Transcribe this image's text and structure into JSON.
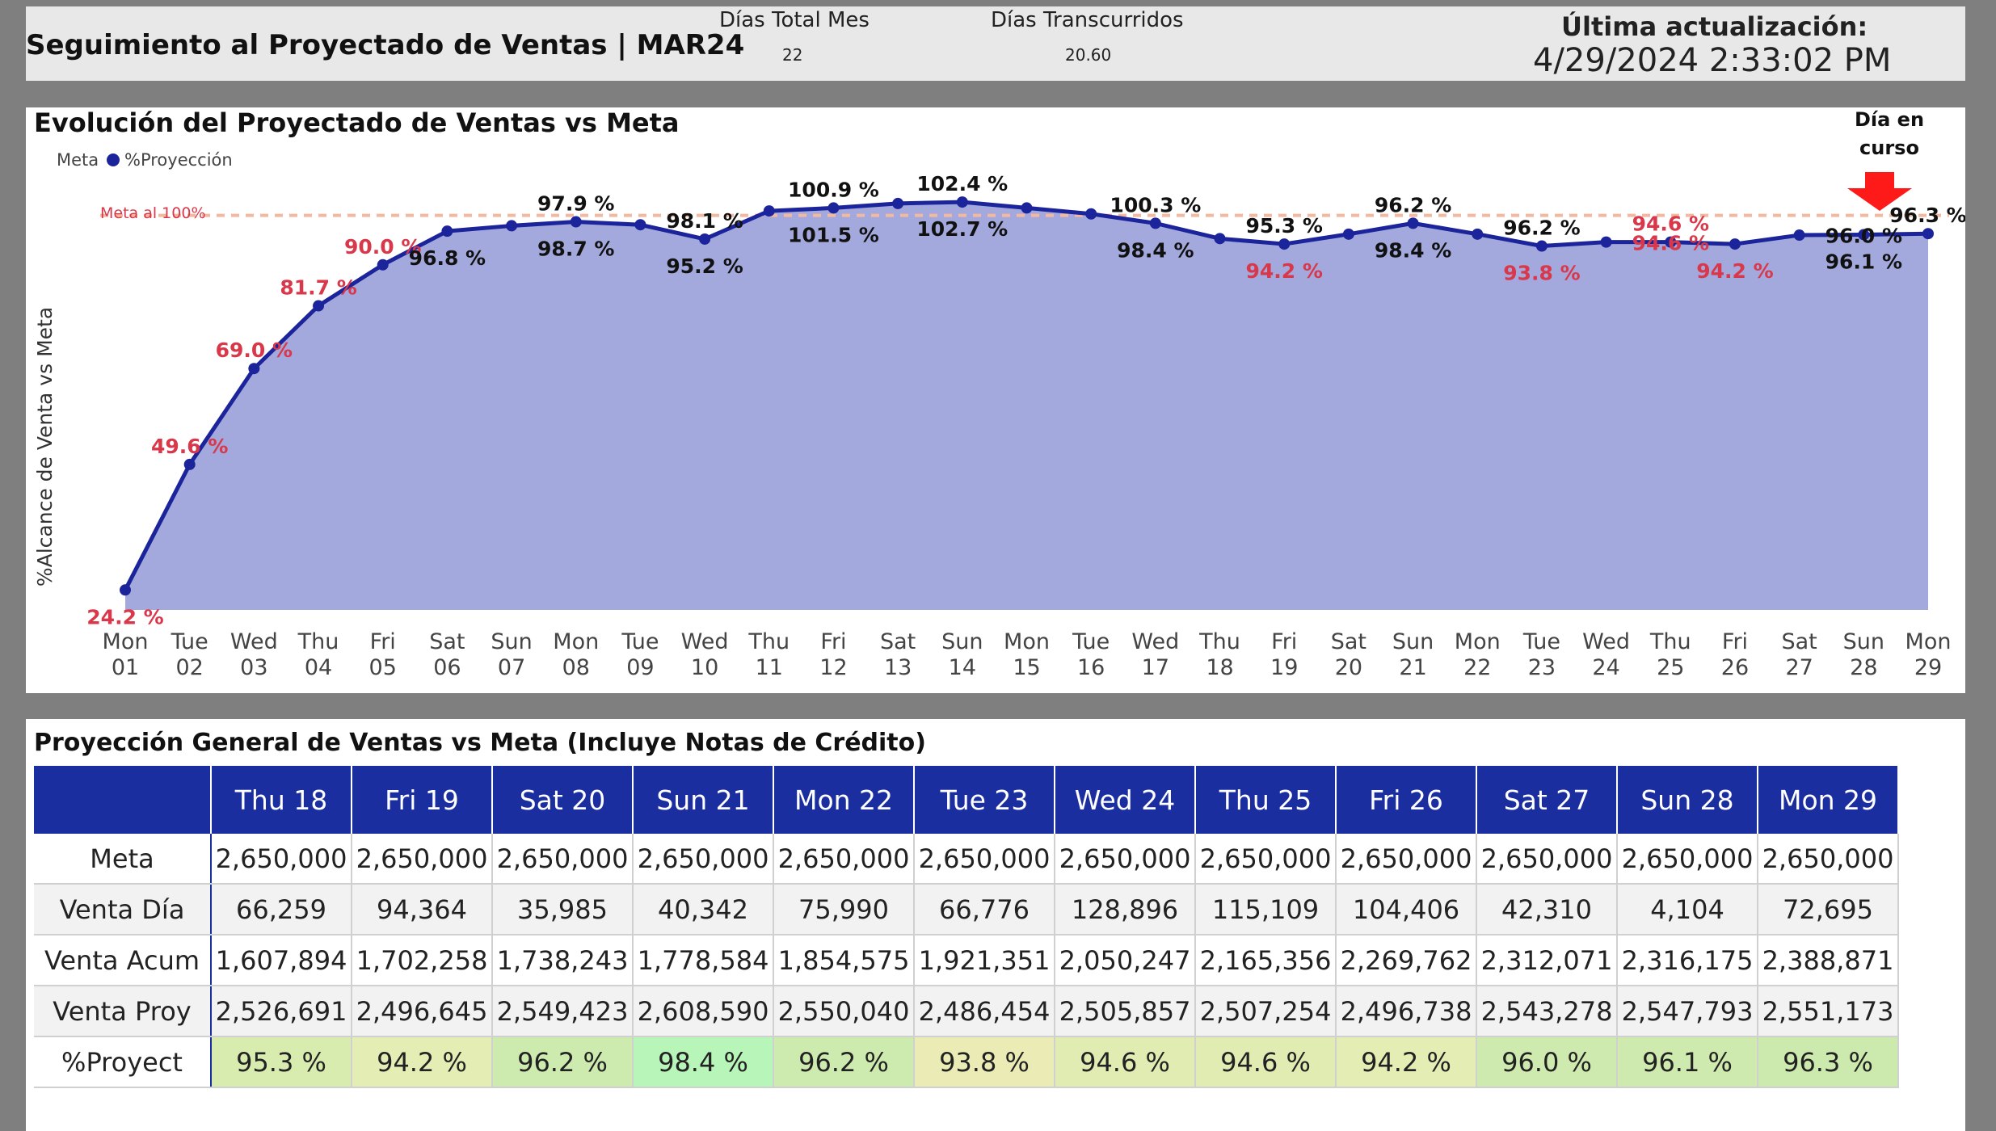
{
  "header": {
    "title": "Seguimiento al Proyectado de Ventas | MAR24",
    "dias_total_label": "Días Total Mes",
    "dias_total_value": "22",
    "dias_trans_label": "Días Transcurridos",
    "dias_trans_value": "20.60",
    "last_update_label": "Última actualización:",
    "last_update_value": "4/29/2024 2:33:02 PM"
  },
  "chart": {
    "title": "Evolución del Proyectado de Ventas vs Meta",
    "legend_meta": "Meta",
    "legend_proy": "%Proyección",
    "meta_line_label": "Meta al 100%",
    "current_day_label_1": "Día en",
    "current_day_label_2": "curso",
    "colors": {
      "area": "#a3a9dc",
      "line": "#1b249a",
      "meta": "#f2b8a0",
      "red_label": "#d9384a",
      "black_label": "#111111",
      "arrow": "#ff0000"
    }
  },
  "chart_data": {
    "type": "area",
    "ylabel": "%Alcance de Venta vs Meta",
    "ylim": [
      20,
      105
    ],
    "meta": 100,
    "x": [
      {
        "d": "Mon",
        "n": "01"
      },
      {
        "d": "Tue",
        "n": "02"
      },
      {
        "d": "Wed",
        "n": "03"
      },
      {
        "d": "Thu",
        "n": "04"
      },
      {
        "d": "Fri",
        "n": "05"
      },
      {
        "d": "Sat",
        "n": "06"
      },
      {
        "d": "Sun",
        "n": "07"
      },
      {
        "d": "Mon",
        "n": "08"
      },
      {
        "d": "Tue",
        "n": "09"
      },
      {
        "d": "Wed",
        "n": "10"
      },
      {
        "d": "Thu",
        "n": "11"
      },
      {
        "d": "Fri",
        "n": "12"
      },
      {
        "d": "Sat",
        "n": "13"
      },
      {
        "d": "Sun",
        "n": "14"
      },
      {
        "d": "Mon",
        "n": "15"
      },
      {
        "d": "Tue",
        "n": "16"
      },
      {
        "d": "Wed",
        "n": "17"
      },
      {
        "d": "Thu",
        "n": "18"
      },
      {
        "d": "Fri",
        "n": "19"
      },
      {
        "d": "Sat",
        "n": "20"
      },
      {
        "d": "Sun",
        "n": "21"
      },
      {
        "d": "Mon",
        "n": "22"
      },
      {
        "d": "Tue",
        "n": "23"
      },
      {
        "d": "Wed",
        "n": "24"
      },
      {
        "d": "Thu",
        "n": "25"
      },
      {
        "d": "Fri",
        "n": "26"
      },
      {
        "d": "Sat",
        "n": "27"
      },
      {
        "d": "Sun",
        "n": "28"
      },
      {
        "d": "Mon",
        "n": "29"
      }
    ],
    "values": [
      24.2,
      49.6,
      69.0,
      81.7,
      90.0,
      96.8,
      97.9,
      98.7,
      98.1,
      95.2,
      100.9,
      101.5,
      102.4,
      102.7,
      101.5,
      100.3,
      98.4,
      95.3,
      94.2,
      96.2,
      98.4,
      96.2,
      93.8,
      94.6,
      94.6,
      94.2,
      96.0,
      96.1,
      96.3
    ],
    "labels": [
      {
        "i": 0,
        "text": "24.2 %",
        "color": "red",
        "pos": "below"
      },
      {
        "i": 1,
        "text": "49.6 %",
        "color": "red",
        "pos": "above"
      },
      {
        "i": 2,
        "text": "69.0 %",
        "color": "red",
        "pos": "above"
      },
      {
        "i": 3,
        "text": "81.7 %",
        "color": "red",
        "pos": "above"
      },
      {
        "i": 4,
        "text": "90.0 %",
        "color": "red",
        "pos": "above"
      },
      {
        "i": 5,
        "text": "96.8 %",
        "color": "black",
        "pos": "below"
      },
      {
        "i": 7,
        "text": "97.9 %",
        "color": "black",
        "pos": "above"
      },
      {
        "i": 7,
        "text": "98.7 %",
        "color": "black",
        "pos": "below"
      },
      {
        "i": 9,
        "text": "98.1 %",
        "color": "black",
        "pos": "above"
      },
      {
        "i": 9,
        "text": "95.2 %",
        "color": "black",
        "pos": "below"
      },
      {
        "i": 11,
        "text": "100.9 %",
        "color": "black",
        "pos": "above"
      },
      {
        "i": 11,
        "text": "101.5 %",
        "color": "black",
        "pos": "below"
      },
      {
        "i": 13,
        "text": "102.4 %",
        "color": "black",
        "pos": "above"
      },
      {
        "i": 13,
        "text": "102.7 %",
        "color": "black",
        "pos": "below"
      },
      {
        "i": 16,
        "text": "100.3 %",
        "color": "black",
        "pos": "above"
      },
      {
        "i": 16,
        "text": "98.4 %",
        "color": "black",
        "pos": "below"
      },
      {
        "i": 18,
        "text": "95.3 %",
        "color": "black",
        "pos": "above"
      },
      {
        "i": 18,
        "text": "94.2 %",
        "color": "red",
        "pos": "below"
      },
      {
        "i": 20,
        "text": "96.2 %",
        "color": "black",
        "pos": "above"
      },
      {
        "i": 20,
        "text": "98.4 %",
        "color": "black",
        "pos": "below"
      },
      {
        "i": 22,
        "text": "96.2 %",
        "color": "black",
        "pos": "above"
      },
      {
        "i": 22,
        "text": "93.8 %",
        "color": "red",
        "pos": "below"
      },
      {
        "i": 24,
        "text": "94.6 %",
        "color": "red",
        "pos": "above"
      },
      {
        "i": 24,
        "text": "94.6 %",
        "color": "red",
        "pos": "on"
      },
      {
        "i": 25,
        "text": "94.2 %",
        "color": "red",
        "pos": "below"
      },
      {
        "i": 27,
        "text": "96.0 %",
        "color": "black",
        "pos": "on"
      },
      {
        "i": 27,
        "text": "96.1 %",
        "color": "black",
        "pos": "below"
      },
      {
        "i": 28,
        "text": "96.3 %",
        "color": "black",
        "pos": "above"
      }
    ],
    "legend_placement": "top-left",
    "grid": false
  },
  "table": {
    "title": "Proyección General de Ventas vs Meta (Incluye Notas de Crédito)",
    "columns": [
      "Thu 18",
      "Fri 19",
      "Sat 20",
      "Sun 21",
      "Mon 22",
      "Tue 23",
      "Wed 24",
      "Thu 25",
      "Fri 26",
      "Sat 27",
      "Sun 28",
      "Mon 29"
    ],
    "rows": [
      {
        "label": "Meta",
        "cells": [
          "2,650,000",
          "2,650,000",
          "2,650,000",
          "2,650,000",
          "2,650,000",
          "2,650,000",
          "2,650,000",
          "2,650,000",
          "2,650,000",
          "2,650,000",
          "2,650,000",
          "2,650,000"
        ]
      },
      {
        "label": "Venta Día",
        "cells": [
          "66,259",
          "94,364",
          "35,985",
          "40,342",
          "75,990",
          "66,776",
          "128,896",
          "115,109",
          "104,406",
          "42,310",
          "4,104",
          "72,695"
        ]
      },
      {
        "label": "Venta Acum",
        "cells": [
          "1,607,894",
          "1,702,258",
          "1,738,243",
          "1,778,584",
          "1,854,575",
          "1,921,351",
          "2,050,247",
          "2,165,356",
          "2,269,762",
          "2,312,071",
          "2,316,175",
          "2,388,871"
        ]
      },
      {
        "label": "Venta Proy",
        "cells": [
          "2,526,691",
          "2,496,645",
          "2,549,423",
          "2,608,590",
          "2,550,040",
          "2,486,454",
          "2,505,857",
          "2,507,254",
          "2,496,738",
          "2,543,278",
          "2,547,793",
          "2,551,173"
        ]
      },
      {
        "label": "%Proyect",
        "cells": [
          "95.3 %",
          "94.2 %",
          "96.2 %",
          "98.4 %",
          "96.2 %",
          "93.8 %",
          "94.6 %",
          "94.6 %",
          "94.2 %",
          "96.0 %",
          "96.1 %",
          "96.3 %"
        ],
        "colors": [
          "#d8ecb0",
          "#e4edb3",
          "#cdebae",
          "#b8f5b8",
          "#cdebae",
          "#ebecb5",
          "#e0ecb2",
          "#e0ecb2",
          "#e4edb3",
          "#cfeaae",
          "#cfeaae",
          "#cceaad"
        ]
      }
    ]
  }
}
